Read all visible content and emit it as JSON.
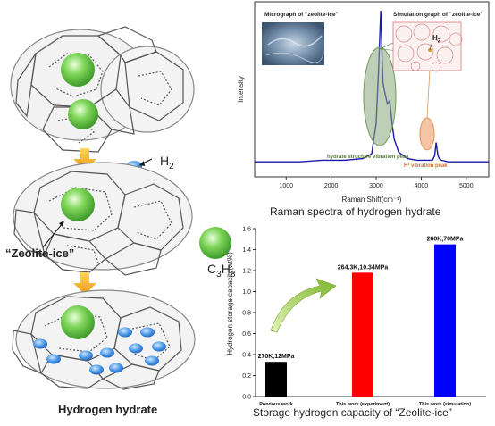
{
  "left_panel": {
    "h2_label": "H",
    "h2_sub": "2",
    "c3h8_label": "C",
    "c3h8_sub1": "3",
    "c3h8_h": "H",
    "c3h8_sub2": "8",
    "zeolite_label": "“Zeolite-ice”",
    "caption": "Hydrogen hydrate"
  },
  "raman_panel": {
    "caption": "Raman spectra of hydrogen hydrate",
    "inset_left_title": "Micrograph of  \"zeolite-ice\"",
    "inset_right_title": "Simulation graph of  \"zeolite-ice\"",
    "inset_h2": "H",
    "inset_h2_sub": "2",
    "annotation_hydrate": "hydrate structure vibration peak",
    "annotation_h2": "H² vibration peak"
  },
  "colors": {
    "raman_line": "#1a1aa6",
    "ellipse_green": "#6e9a5e",
    "ellipse_orange": "#e0965a",
    "bar_black": "#000000",
    "bar_red": "#ff0000",
    "bar_blue": "#0000ff",
    "sphere_green": "#5cc23c",
    "sphere_blue": "#3a8fe0",
    "arrow_orange": "#f2b21a",
    "arrow_green": "#8fc23a"
  },
  "chart_data": [
    {
      "type": "line",
      "title": "Raman spectra of hydrogen hydrate",
      "xlabel": "Raman Shift(cm⁻¹)",
      "ylabel": "Intensity",
      "xlim": [
        300,
        5500
      ],
      "xticks": [
        "1000",
        "2000",
        "3000",
        "4000",
        "5000"
      ],
      "x": [
        300,
        800,
        1300,
        1800,
        2300,
        2700,
        2900,
        3000,
        3050,
        3100,
        3150,
        3200,
        3250,
        3300,
        3350,
        3400,
        3500,
        3700,
        3900,
        4100,
        4250,
        4300,
        4330,
        4370,
        4400,
        4450,
        4600,
        5000,
        5500
      ],
      "values": [
        0.06,
        0.06,
        0.06,
        0.07,
        0.07,
        0.08,
        0.11,
        0.3,
        0.62,
        1.0,
        0.55,
        0.48,
        0.42,
        0.44,
        0.3,
        0.2,
        0.12,
        0.08,
        0.07,
        0.07,
        0.07,
        0.1,
        0.18,
        0.1,
        0.08,
        0.07,
        0.06,
        0.06,
        0.06
      ]
    },
    {
      "type": "bar",
      "title": "Storage hydrogen capacity of “Zeolite-ice”",
      "ylabel": "Hydrogen storage capacity(wt%)",
      "ylim": [
        0,
        1.6
      ],
      "yticks": [
        "0.0",
        "0.2",
        "0.4",
        "0.6",
        "0.8",
        "1.0",
        "1.2",
        "1.4",
        "1.6"
      ],
      "categories": [
        "Previous work",
        "This work (experiment)",
        "This work (simulation)"
      ],
      "values": [
        0.33,
        1.18,
        1.45
      ],
      "labels": [
        "270K,12MPa",
        "264.3K,10.34MPa",
        "260K,70MPa"
      ]
    }
  ]
}
